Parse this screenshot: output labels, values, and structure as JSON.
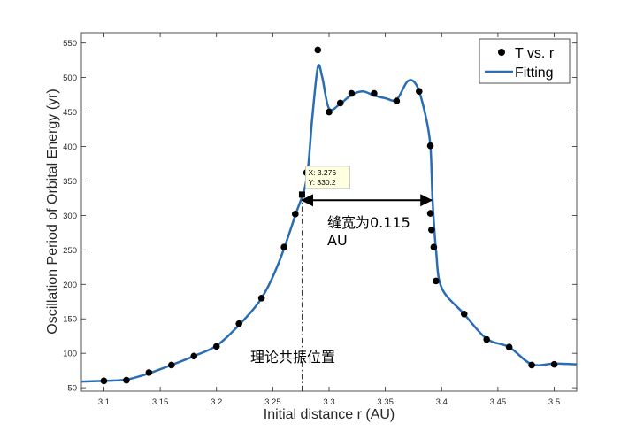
{
  "chart_data": {
    "type": "scatter",
    "xlabel": "Initial distance r (AU)",
    "ylabel": "Oscillation Period of Orbital Energy (yr)",
    "xlim": [
      3.08,
      3.52
    ],
    "ylim": [
      45,
      565
    ],
    "xticks": [
      "3.1",
      "3.15",
      "3.2",
      "3.25",
      "3.3",
      "3.35",
      "3.4",
      "3.45",
      "3.5"
    ],
    "xtick_values": [
      3.1,
      3.15,
      3.2,
      3.25,
      3.3,
      3.35,
      3.4,
      3.45,
      3.5
    ],
    "yticks": [
      "50",
      "100",
      "150",
      "200",
      "250",
      "300",
      "350",
      "400",
      "450",
      "500",
      "550"
    ],
    "ytick_values": [
      50,
      100,
      150,
      200,
      250,
      300,
      350,
      400,
      450,
      500,
      550
    ],
    "grid": false,
    "legend_position": "top-right",
    "series": [
      {
        "name": "T vs. r",
        "kind": "markers",
        "color": "#000000",
        "points": [
          [
            3.1,
            60
          ],
          [
            3.12,
            61
          ],
          [
            3.14,
            72
          ],
          [
            3.16,
            83
          ],
          [
            3.18,
            96
          ],
          [
            3.2,
            110
          ],
          [
            3.22,
            143
          ],
          [
            3.24,
            180
          ],
          [
            3.26,
            254
          ],
          [
            3.27,
            302
          ],
          [
            3.28,
            362
          ],
          [
            3.29,
            540
          ],
          [
            3.3,
            450
          ],
          [
            3.31,
            463
          ],
          [
            3.32,
            477
          ],
          [
            3.34,
            477
          ],
          [
            3.36,
            466
          ],
          [
            3.38,
            480
          ],
          [
            3.39,
            401
          ],
          [
            3.39,
            303
          ],
          [
            3.391,
            279
          ],
          [
            3.393,
            254
          ],
          [
            3.395,
            205
          ],
          [
            3.42,
            157
          ],
          [
            3.44,
            120
          ],
          [
            3.46,
            109
          ],
          [
            3.48,
            83
          ],
          [
            3.5,
            84
          ]
        ]
      },
      {
        "name": "Fitting",
        "kind": "line",
        "color": "#2a6db3",
        "points": [
          [
            3.08,
            59
          ],
          [
            3.1,
            60
          ],
          [
            3.12,
            62
          ],
          [
            3.14,
            71
          ],
          [
            3.16,
            83
          ],
          [
            3.18,
            96
          ],
          [
            3.2,
            111
          ],
          [
            3.22,
            141
          ],
          [
            3.24,
            180
          ],
          [
            3.255,
            230
          ],
          [
            3.27,
            300
          ],
          [
            3.28,
            352
          ],
          [
            3.285,
            440
          ],
          [
            3.29,
            515
          ],
          [
            3.294,
            500
          ],
          [
            3.3,
            455
          ],
          [
            3.31,
            462
          ],
          [
            3.32,
            475
          ],
          [
            3.33,
            480
          ],
          [
            3.34,
            474
          ],
          [
            3.35,
            470
          ],
          [
            3.36,
            468
          ],
          [
            3.37,
            495
          ],
          [
            3.378,
            488
          ],
          [
            3.385,
            450
          ],
          [
            3.39,
            402
          ],
          [
            3.392,
            320
          ],
          [
            3.395,
            250
          ],
          [
            3.4,
            195
          ],
          [
            3.42,
            157
          ],
          [
            3.44,
            121
          ],
          [
            3.46,
            109
          ],
          [
            3.48,
            84
          ],
          [
            3.5,
            85
          ],
          [
            3.52,
            84
          ]
        ]
      }
    ],
    "datatip": {
      "x": 3.276,
      "y": 330.2,
      "label_x": "X: 3.276",
      "label_y": "Y: 330.2"
    },
    "resonance_line_x": 3.276,
    "arrow": {
      "y": 322,
      "x_from": 3.276,
      "x_to": 3.391
    },
    "annotations": {
      "width_line1": "缝宽为0.115",
      "width_line2": "AU",
      "resonance": "理论共振位置"
    }
  }
}
